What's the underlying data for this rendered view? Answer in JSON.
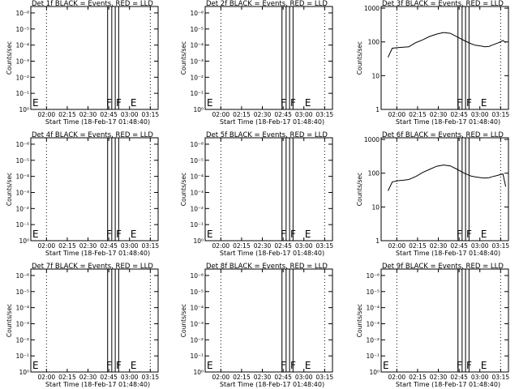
{
  "chart_data": [
    {
      "type": "line",
      "title": "Det 1f BLACK = Events, RED = LLD",
      "xlabel": "Start Time (18-Feb-17 01:48:40)",
      "ylabel": "Counts/sec",
      "log_y": true,
      "yticks": [
        "10⁰",
        "10⁻¹",
        "10⁻²",
        "10⁻³",
        "10⁻⁴",
        "10⁻⁵",
        "10⁻⁶"
      ],
      "xticks": [
        "02:00",
        "02:15",
        "02:30",
        "02:45",
        "03:00",
        "03:15"
      ],
      "flags": [
        "F",
        "F",
        "E"
      ],
      "series": []
    },
    {
      "type": "line",
      "title": "Det 2f BLACK = Events, RED = LLD",
      "xlabel": "Start Time (18-Feb-17 01:48:40)",
      "ylabel": "Counts/sec",
      "log_y": true,
      "yticks": [
        "10⁰",
        "10⁻¹",
        "10⁻²",
        "10⁻³",
        "10⁻⁴",
        "10⁻⁵",
        "10⁻⁶"
      ],
      "xticks": [
        "02:00",
        "02:15",
        "02:30",
        "02:45",
        "03:00",
        "03:15"
      ],
      "flags": [
        "F",
        "F",
        "E"
      ],
      "series": []
    },
    {
      "type": "line",
      "title": "Det 3f BLACK = Events, RED = LLD",
      "xlabel": "Start Time (18-Feb-17 01:48:40)",
      "ylabel": "Counts/sec",
      "log_y": true,
      "yticks": [
        "1",
        "10",
        "100",
        "1000"
      ],
      "xticks": [
        "02:00",
        "02:15",
        "02:30",
        "02:45",
        "03:00",
        "03:15"
      ],
      "flags": [
        "F",
        "F",
        "E"
      ],
      "series": [
        {
          "x_min": [
            5,
            8,
            12,
            16,
            20,
            25,
            30,
            35,
            40,
            45,
            50,
            55,
            60,
            65,
            68,
            70,
            72,
            75,
            78,
            80,
            85,
            88,
            90
          ],
          "y": [
            35,
            65,
            68,
            70,
            72,
            95,
            115,
            145,
            170,
            190,
            180,
            140,
            110,
            88,
            80,
            78,
            76,
            72,
            74,
            80,
            95,
            110,
            95
          ]
        }
      ]
    },
    {
      "type": "line",
      "title": "Det 4f BLACK = Events, RED = LLD",
      "xlabel": "Start Time (18-Feb-17 01:48:40)",
      "ylabel": "Counts/sec",
      "log_y": true,
      "yticks": [
        "10⁰",
        "10⁻¹",
        "10⁻²",
        "10⁻³",
        "10⁻⁴",
        "10⁻⁵",
        "10⁻⁶"
      ],
      "xticks": [
        "02:00",
        "02:15",
        "02:30",
        "02:45",
        "03:00",
        "03:15"
      ],
      "flags": [
        "F",
        "F",
        "E"
      ],
      "series": []
    },
    {
      "type": "line",
      "title": "Det 5f BLACK = Events, RED = LLD",
      "xlabel": "Start Time (18-Feb-17 01:48:40)",
      "ylabel": "Counts/sec",
      "log_y": true,
      "yticks": [
        "10⁰",
        "10⁻¹",
        "10⁻²",
        "10⁻³",
        "10⁻⁴",
        "10⁻⁵",
        "10⁻⁶"
      ],
      "xticks": [
        "02:00",
        "02:15",
        "02:30",
        "02:45",
        "03:00",
        "03:15"
      ],
      "flags": [
        "F",
        "F",
        "E"
      ],
      "series": []
    },
    {
      "type": "line",
      "title": "Det 6f BLACK = Events, RED = LLD",
      "xlabel": "Start Time (18-Feb-17 01:48:40)",
      "ylabel": "Counts/sec",
      "log_y": true,
      "yticks": [
        "1",
        "10",
        "100",
        "1000"
      ],
      "xticks": [
        "02:00",
        "02:15",
        "02:30",
        "02:45",
        "03:00",
        "03:15"
      ],
      "flags": [
        "F",
        "F",
        "E"
      ],
      "series": [
        {
          "x_min": [
            5,
            8,
            12,
            16,
            20,
            25,
            30,
            35,
            40,
            45,
            50,
            55,
            60,
            65,
            68,
            70,
            72,
            75,
            78,
            80,
            85,
            88,
            90
          ],
          "y": [
            30,
            55,
            60,
            62,
            65,
            80,
            105,
            130,
            160,
            175,
            165,
            130,
            100,
            82,
            78,
            76,
            74,
            72,
            74,
            78,
            88,
            95,
            40
          ]
        }
      ]
    },
    {
      "type": "line",
      "title": "Det 7f BLACK = Events, RED = LLD",
      "xlabel": "Start Time (18-Feb-17 01:48:40)",
      "ylabel": "Counts/sec",
      "log_y": true,
      "yticks": [
        "10⁰",
        "10⁻¹",
        "10⁻²",
        "10⁻³",
        "10⁻⁴",
        "10⁻⁵",
        "10⁻⁶"
      ],
      "xticks": [
        "02:00",
        "02:15",
        "02:30",
        "02:45",
        "03:00",
        "03:15"
      ],
      "flags": [
        "F",
        "F",
        "E"
      ],
      "series": []
    },
    {
      "type": "line",
      "title": "Det 8f BLACK = Events, RED = LLD",
      "xlabel": "Start Time (18-Feb-17 01:48:40)",
      "ylabel": "Counts/sec",
      "log_y": true,
      "yticks": [
        "10⁰",
        "10⁻¹",
        "10⁻²",
        "10⁻³",
        "10⁻⁴",
        "10⁻⁵",
        "10⁻⁶"
      ],
      "xticks": [
        "02:00",
        "02:15",
        "02:30",
        "02:45",
        "03:00",
        "03:15"
      ],
      "flags": [
        "F",
        "F",
        "E"
      ],
      "series": []
    },
    {
      "type": "line",
      "title": "Det 9f BLACK = Events, RED = LLD",
      "xlabel": "Start Time (18-Feb-17 01:48:40)",
      "ylabel": "Counts/sec",
      "log_y": true,
      "yticks": [
        "10⁰",
        "10⁻¹",
        "10⁻²",
        "10⁻³",
        "10⁻⁴",
        "10⁻⁵",
        "10⁻⁶"
      ],
      "xticks": [
        "02:00",
        "02:15",
        "02:30",
        "02:45",
        "03:00",
        "03:15"
      ],
      "flags": [
        "F",
        "F",
        "E"
      ],
      "series": []
    }
  ]
}
